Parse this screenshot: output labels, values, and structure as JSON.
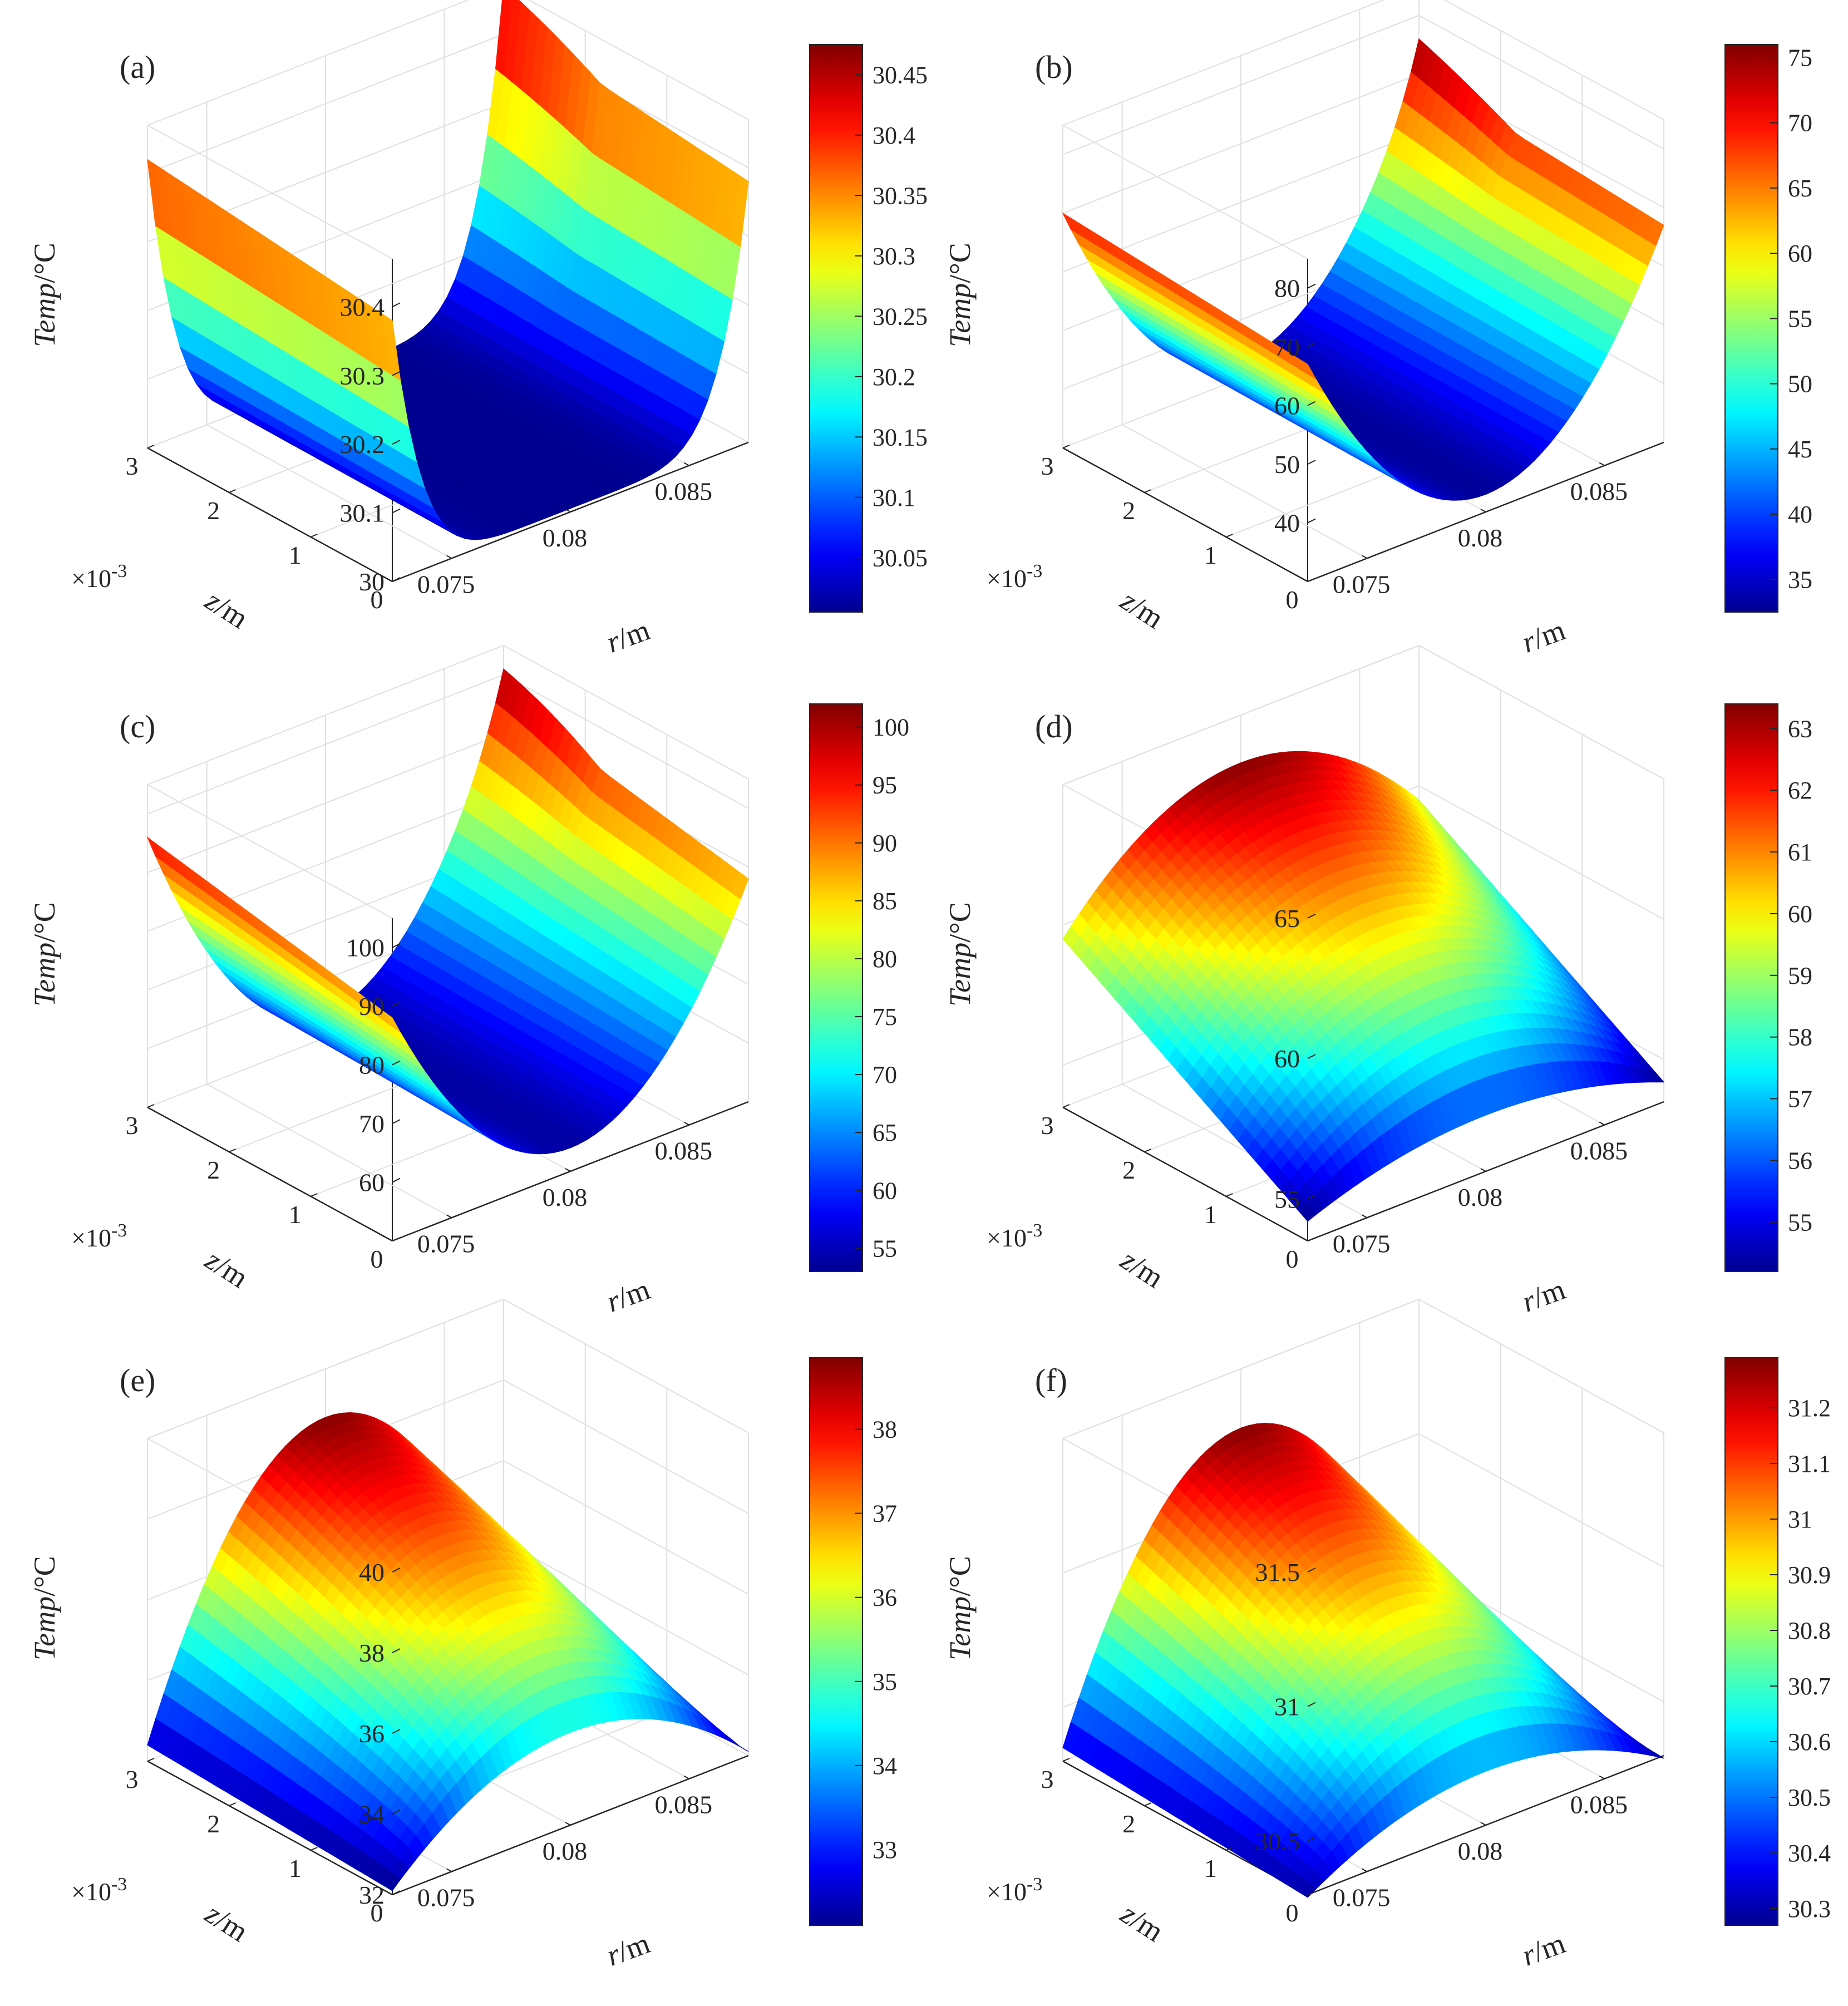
{
  "figure": {
    "colormap": "jet",
    "colormap_stops": [
      "#00008f",
      "#0000ff",
      "#00ffff",
      "#ffff00",
      "#ff0000",
      "#800000"
    ],
    "axis_labels": {
      "temp": {
        "italic": "Temp",
        "unit": "/°C"
      },
      "z": {
        "italic": "z",
        "unit": "/m"
      },
      "r": {
        "italic": "r",
        "unit": "/m"
      }
    },
    "z_exponent_label": "×10",
    "z_exponent_sup": "-3",
    "r_tick_labels": [
      "0.075",
      "0.08",
      "0.085"
    ],
    "z_tick_labels": [
      "0",
      "1",
      "2",
      "3"
    ]
  },
  "chart_data": [
    {
      "label": "(a)",
      "type": "surface",
      "shape": "valley",
      "x_data": "r",
      "y_data": "z",
      "z_data": "Temp",
      "r_range": [
        0.0725,
        0.0875
      ],
      "z_range": [
        0,
        0.003
      ],
      "temp_edge_near": 30.38,
      "temp_edge_far": 30.42,
      "temp_far_end": 30.47,
      "temp_min": 30.005,
      "valley_power": 6,
      "zlim": [
        30,
        30.47
      ],
      "temp_ticks": [
        "30",
        "30.1",
        "30.2",
        "30.3",
        "30.4"
      ],
      "temp_tick_values": [
        30,
        30.1,
        30.2,
        30.3,
        30.4
      ],
      "colorbar_range": [
        30.005,
        30.475
      ],
      "colorbar_ticks": [
        "30.05",
        "30.1",
        "30.15",
        "30.2",
        "30.25",
        "30.3",
        "30.35",
        "30.4",
        "30.45"
      ],
      "colorbar_tick_values": [
        30.05,
        30.1,
        30.15,
        30.2,
        30.25,
        30.3,
        30.35,
        30.4,
        30.45
      ]
    },
    {
      "label": "(b)",
      "type": "surface",
      "shape": "valley",
      "r_range": [
        0.0725,
        0.0875
      ],
      "z_range": [
        0,
        0.003
      ],
      "temp_edge_near": 67,
      "temp_edge_far": 70,
      "temp_far_end": 76,
      "temp_min": 33,
      "valley_power": 2,
      "zlim": [
        30,
        85
      ],
      "temp_ticks": [
        "40",
        "50",
        "60",
        "70",
        "80"
      ],
      "temp_tick_values": [
        40,
        50,
        60,
        70,
        80
      ],
      "colorbar_range": [
        32.5,
        76
      ],
      "colorbar_ticks": [
        "35",
        "40",
        "45",
        "50",
        "55",
        "60",
        "65",
        "70",
        "75"
      ],
      "colorbar_tick_values": [
        35,
        40,
        45,
        50,
        55,
        60,
        65,
        70,
        75
      ]
    },
    {
      "label": "(c)",
      "type": "surface",
      "shape": "valley",
      "r_range": [
        0.0725,
        0.0875
      ],
      "z_range": [
        0,
        0.003
      ],
      "temp_edge_near": 88,
      "temp_edge_far": 96,
      "temp_far_end": 101,
      "temp_min": 54,
      "valley_power": 2,
      "zlim": [
        50,
        105
      ],
      "temp_ticks": [
        "60",
        "70",
        "80",
        "90",
        "100"
      ],
      "temp_tick_values": [
        60,
        70,
        80,
        90,
        100
      ],
      "colorbar_range": [
        53,
        102
      ],
      "colorbar_ticks": [
        "55",
        "60",
        "65",
        "70",
        "75",
        "80",
        "85",
        "90",
        "95",
        "100"
      ],
      "colorbar_tick_values": [
        55,
        60,
        65,
        70,
        75,
        80,
        85,
        90,
        95,
        100
      ]
    },
    {
      "label": "(d)",
      "type": "surface",
      "shape": "dome",
      "r_range": [
        0.0725,
        0.0875
      ],
      "z_range": [
        0,
        0.003
      ],
      "temp_edge_near": 54.2,
      "temp_edge_far": 59.5,
      "temp_peak_near": 55.5,
      "temp_peak_far": 63.3,
      "zlim": [
        53.5,
        65
      ],
      "temp_ticks": [
        "55",
        "60",
        "65"
      ],
      "temp_tick_values": [
        55,
        60,
        65
      ],
      "colorbar_range": [
        54.2,
        63.4
      ],
      "colorbar_ticks": [
        "55",
        "56",
        "57",
        "58",
        "59",
        "60",
        "61",
        "62",
        "63"
      ],
      "colorbar_tick_values": [
        55,
        56,
        57,
        58,
        59,
        60,
        61,
        62,
        63
      ]
    },
    {
      "label": "(e)",
      "type": "surface",
      "shape": "dome",
      "r_range": [
        0.0725,
        0.0875
      ],
      "z_range": [
        0,
        0.003
      ],
      "temp_edge_near": 32.1,
      "temp_edge_far": 32.4,
      "temp_peak_near": 34.3,
      "temp_peak_far": 38.8,
      "zlim": [
        32,
        40
      ],
      "temp_ticks": [
        "32",
        "34",
        "36",
        "38",
        "40"
      ],
      "temp_tick_values": [
        32,
        34,
        36,
        38,
        40
      ],
      "colorbar_range": [
        32.1,
        38.85
      ],
      "colorbar_ticks": [
        "33",
        "34",
        "35",
        "36",
        "37",
        "38"
      ],
      "colorbar_tick_values": [
        33,
        34,
        35,
        36,
        37,
        38
      ]
    },
    {
      "label": "(f)",
      "type": "surface",
      "shape": "dome",
      "r_range": [
        0.0725,
        0.0875
      ],
      "z_range": [
        0,
        0.003
      ],
      "temp_edge_near": 30.29,
      "temp_edge_far": 30.35,
      "temp_peak_near": 30.5,
      "temp_peak_far": 31.28,
      "zlim": [
        30.3,
        31.5
      ],
      "temp_ticks": [
        "30.5",
        "31",
        "31.5"
      ],
      "temp_tick_values": [
        30.5,
        31,
        31.5
      ],
      "colorbar_range": [
        30.27,
        31.29
      ],
      "colorbar_ticks": [
        "30.3",
        "30.4",
        "30.5",
        "30.6",
        "30.7",
        "30.8",
        "30.9",
        "31",
        "31.1",
        "31.2"
      ],
      "colorbar_tick_values": [
        30.3,
        30.4,
        30.5,
        30.6,
        30.7,
        30.8,
        30.9,
        31,
        31.1,
        31.2
      ]
    }
  ]
}
